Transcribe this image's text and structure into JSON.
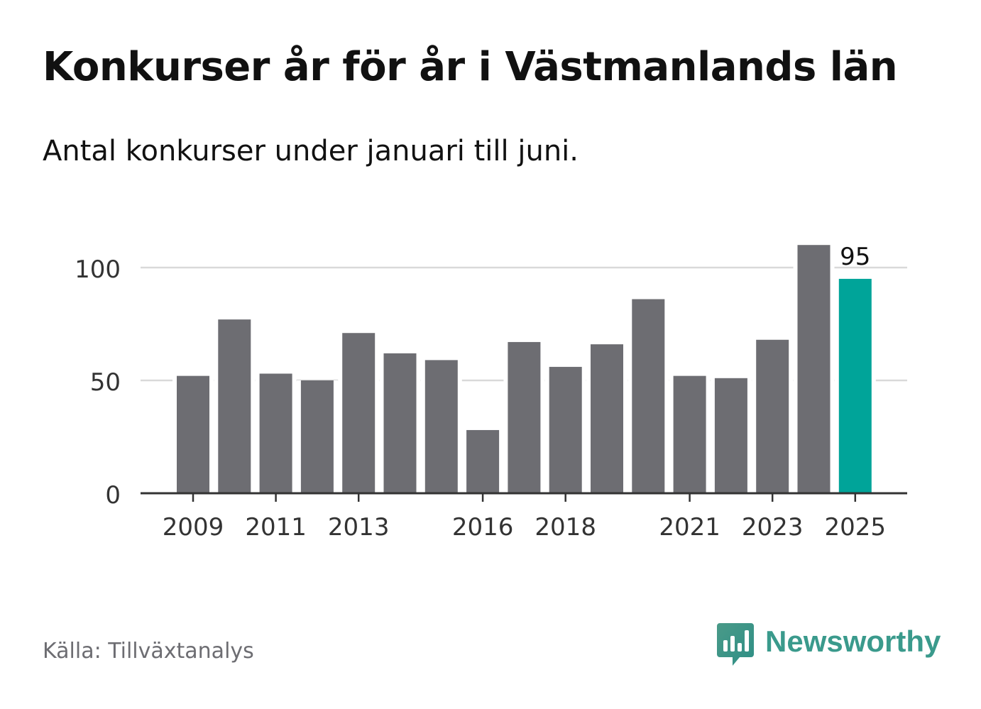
{
  "header": {
    "title": "Konkurser år för år i Västmanlands län",
    "subtitle": "Antal konkurser under januari till juni."
  },
  "footer": {
    "source": "Källa: Tillväxtanalys",
    "brand": "Newsworthy",
    "brand_icon": "bar-chart-speech-bubble-icon"
  },
  "colors": {
    "bar": "#6d6d72",
    "highlight": "#00a499",
    "grid": "#d9d9d9",
    "axis": "#333333",
    "brand": "#3a9a8c"
  },
  "chart_data": {
    "type": "bar",
    "title": "Konkurser år för år i Västmanlands län",
    "subtitle": "Antal konkurser under januari till juni.",
    "xlabel": "",
    "ylabel": "",
    "categories": [
      "2009",
      "2010",
      "2011",
      "2012",
      "2013",
      "2014",
      "2015",
      "2016",
      "2017",
      "2018",
      "2019",
      "2020",
      "2021",
      "2022",
      "2023",
      "2024",
      "2025"
    ],
    "values": [
      52,
      77,
      53,
      50,
      71,
      62,
      59,
      28,
      67,
      56,
      66,
      86,
      52,
      51,
      68,
      110,
      95
    ],
    "x_tick_labels": [
      "2009",
      "2011",
      "2013",
      "2016",
      "2018",
      "2021",
      "2023",
      "2025"
    ],
    "y_ticks": [
      0,
      50,
      100
    ],
    "ylim": [
      0,
      110
    ],
    "highlight_category": "2025",
    "highlight_label": "95",
    "grid": true,
    "legend": "none"
  }
}
